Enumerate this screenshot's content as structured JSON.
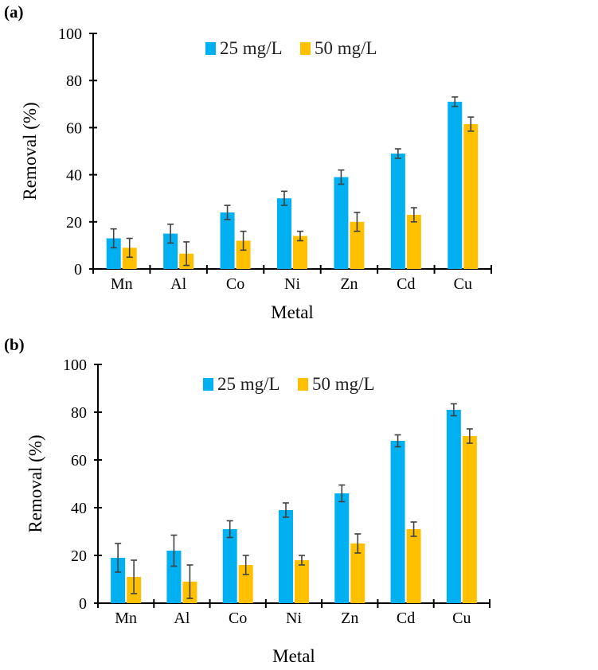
{
  "colors": {
    "series_25": "#00B0F0",
    "series_50": "#FFC000",
    "error_bar": "#404040",
    "axis": "#000000"
  },
  "chart_data": [
    {
      "type": "bar",
      "panel_label": "(a)",
      "xlabel": "Metal",
      "ylabel": "Removal (%)",
      "ylim": [
        0,
        100
      ],
      "yticks": [
        "0",
        "20",
        "40",
        "60",
        "80",
        "100"
      ],
      "grid": false,
      "legend_position": "top-center",
      "categories": [
        "Mn",
        "Al",
        "Co",
        "Ni",
        "Zn",
        "Cd",
        "Cu"
      ],
      "series": [
        {
          "name": "25 mg/L",
          "values": [
            13,
            15,
            24,
            30,
            39,
            49,
            71
          ],
          "errors": [
            4,
            4,
            3,
            3,
            3,
            2,
            2
          ]
        },
        {
          "name": "50 mg/L",
          "values": [
            9,
            6.5,
            12,
            14,
            20,
            23,
            61.5
          ],
          "errors": [
            4,
            5,
            4,
            2,
            4,
            3,
            3
          ]
        }
      ]
    },
    {
      "type": "bar",
      "panel_label": "(b)",
      "xlabel": "Metal",
      "ylabel": "Removal (%)",
      "ylim": [
        0,
        100
      ],
      "yticks": [
        "0",
        "20",
        "40",
        "60",
        "80",
        "100"
      ],
      "grid": false,
      "legend_position": "top-center",
      "categories": [
        "Mn",
        "Al",
        "Co",
        "Ni",
        "Zn",
        "Cd",
        "Cu"
      ],
      "series": [
        {
          "name": "25 mg/L",
          "values": [
            19,
            22,
            31,
            39,
            46,
            68,
            81
          ],
          "errors": [
            6,
            6.5,
            3.5,
            3,
            3.5,
            2.5,
            2.5
          ]
        },
        {
          "name": "50 mg/L",
          "values": [
            11,
            9,
            16,
            18,
            25,
            31,
            70
          ],
          "errors": [
            7,
            7,
            4,
            2,
            4,
            3,
            3
          ]
        }
      ]
    }
  ]
}
